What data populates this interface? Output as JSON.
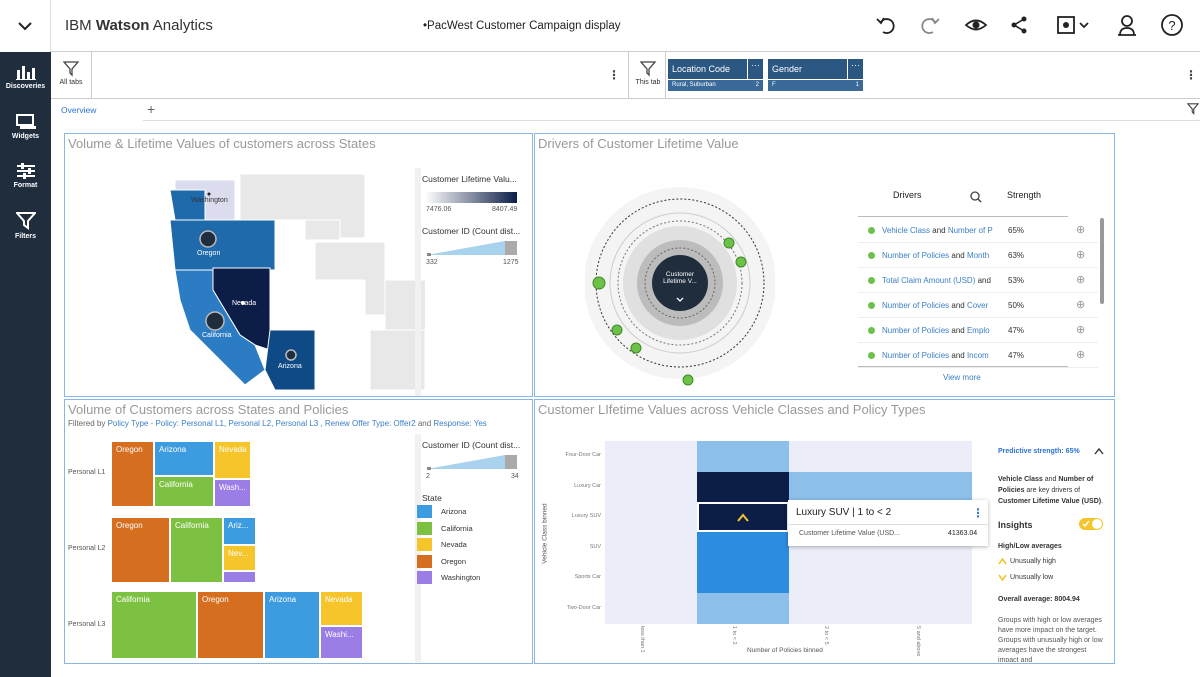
{
  "app": {
    "brand_prefix": "IBM",
    "brand_bold": "Watson",
    "brand_suffix": "Analytics",
    "doc_title": "•PacWest Customer Campaign display"
  },
  "rail": {
    "items": [
      {
        "label": "Discoveries",
        "icon": "bar-chart-icon"
      },
      {
        "label": "Widgets",
        "icon": "widgets-icon"
      },
      {
        "label": "Format",
        "icon": "sliders-icon"
      },
      {
        "label": "Filters",
        "icon": "funnel-icon"
      }
    ]
  },
  "filterbar": {
    "all_tabs": "All tabs",
    "this_tab": "This tab",
    "chips": [
      {
        "title": "Location Code",
        "value": "Rural, Suburban",
        "count": "2"
      },
      {
        "title": "Gender",
        "value": "F",
        "count": "1"
      }
    ]
  },
  "tabs": {
    "active": "Overview",
    "add": "+"
  },
  "panel_map": {
    "title": "Volume & Lifetime Values of customers across States",
    "states": [
      "Washington",
      "Oregon",
      "Nevada",
      "California",
      "Arizona"
    ],
    "legend_clv_title": "Customer Lifetime Valu...",
    "legend_clv_min": "7476.06",
    "legend_clv_max": "8407.49",
    "legend_count_title": "Customer ID (Count dist...",
    "legend_count_min": "332",
    "legend_count_max": "1275"
  },
  "panel_drivers": {
    "title": "Drivers of Customer Lifetime Value",
    "center_label_1": "Customer",
    "center_label_2": "Lifetime V...",
    "col_drivers": "Drivers",
    "col_strength": "Strength",
    "rows": [
      {
        "a": "Vehicle Class",
        "mid": " and ",
        "b": "Number of P",
        "strength": "65%"
      },
      {
        "a": "Number of Policies",
        "mid": " and ",
        "b": "Month",
        "strength": "63%"
      },
      {
        "a": "Total Claim Amount (USD)",
        "mid": " and ",
        "b": "",
        "strength": "53%"
      },
      {
        "a": "Number of Policies",
        "mid": " and ",
        "b": "Cover",
        "strength": "50%"
      },
      {
        "a": "Number of Policies",
        "mid": " and ",
        "b": "Emplo",
        "strength": "47%"
      },
      {
        "a": "Number of Policies",
        "mid": " and ",
        "b": "Incom",
        "strength": "47%"
      }
    ],
    "view_more": "View more"
  },
  "panel_treemap": {
    "title": "Volume of Customers across States and Policies",
    "subtitle_prefix": "Filtered by ",
    "subtitle_policy": "Policy Type - Policy: Personal L1, Personal L2, Personal L3",
    "subtitle_mid": " , Renew Offer Type: Offer2",
    "subtitle_and": " and ",
    "subtitle_resp": "Response: Yes",
    "row_labels": [
      "Personal L1",
      "Personal L2",
      "Personal L3"
    ],
    "legend_count_title": "Customer ID (Count dist...",
    "legend_count_min": "2",
    "legend_count_max": "34",
    "legend_state_title": "State",
    "legend_states": [
      {
        "name": "Arizona",
        "color": "#3d9be0"
      },
      {
        "name": "California",
        "color": "#7cc142"
      },
      {
        "name": "Nevada",
        "color": "#f5c52b"
      },
      {
        "name": "Oregon",
        "color": "#d56f1f"
      },
      {
        "name": "Washington",
        "color": "#9b7de6"
      }
    ],
    "cells": {
      "l1": [
        "Oregon",
        "Arizona",
        "Nevada",
        "California",
        "Wash..."
      ],
      "l2": [
        "Oregon",
        "California",
        "Ariz...",
        "Nev...",
        ""
      ],
      "l3": [
        "California",
        "Oregon",
        "Arizona",
        "Nevada",
        "Washi..."
      ]
    }
  },
  "panel_heatmap": {
    "title": "Customer LIfetime Values across Vehicle Classes and Policy Types",
    "y_axis_label": "Vehicle Class binned",
    "x_axis_label": "Number of Policies binned",
    "y_categories": [
      "Four-Door Car",
      "Luxury Car",
      "Luxury SUV",
      "SUV",
      "Sports Car",
      "Two-Door Car"
    ],
    "x_categories": [
      "less than 1",
      "1 to < 2",
      "2 to < 5",
      "5 and above"
    ],
    "tooltip_title": "Luxury SUV | 1 to < 2",
    "tooltip_metric": "Customer Lifetime Value (USD...",
    "tooltip_value": "41363.04",
    "insights": {
      "predictive": "Predictive strength: 65%",
      "driver_text_1": "Vehicle Class",
      "driver_text_2": " and ",
      "driver_text_3": "Number of Policies",
      "driver_text_4": " are key drivers of ",
      "driver_text_5": "Customer Lifetime Value (USD)",
      "driver_text_6": ".",
      "insights_label": "Insights",
      "high_low": "High/Low averages",
      "unusually_high": "Unusually high",
      "unusually_low": "Unusually low",
      "overall": "Overall average: 8004.94",
      "footnote": "Groups with high or low averages have more impact on the target. Groups with unusually high or low averages have the strongest impact and"
    }
  },
  "colors": {
    "rail": "#1f2d3d",
    "accent": "#2d74da",
    "chip": "#2c5782",
    "insight_toggle": "#f5c52b"
  }
}
